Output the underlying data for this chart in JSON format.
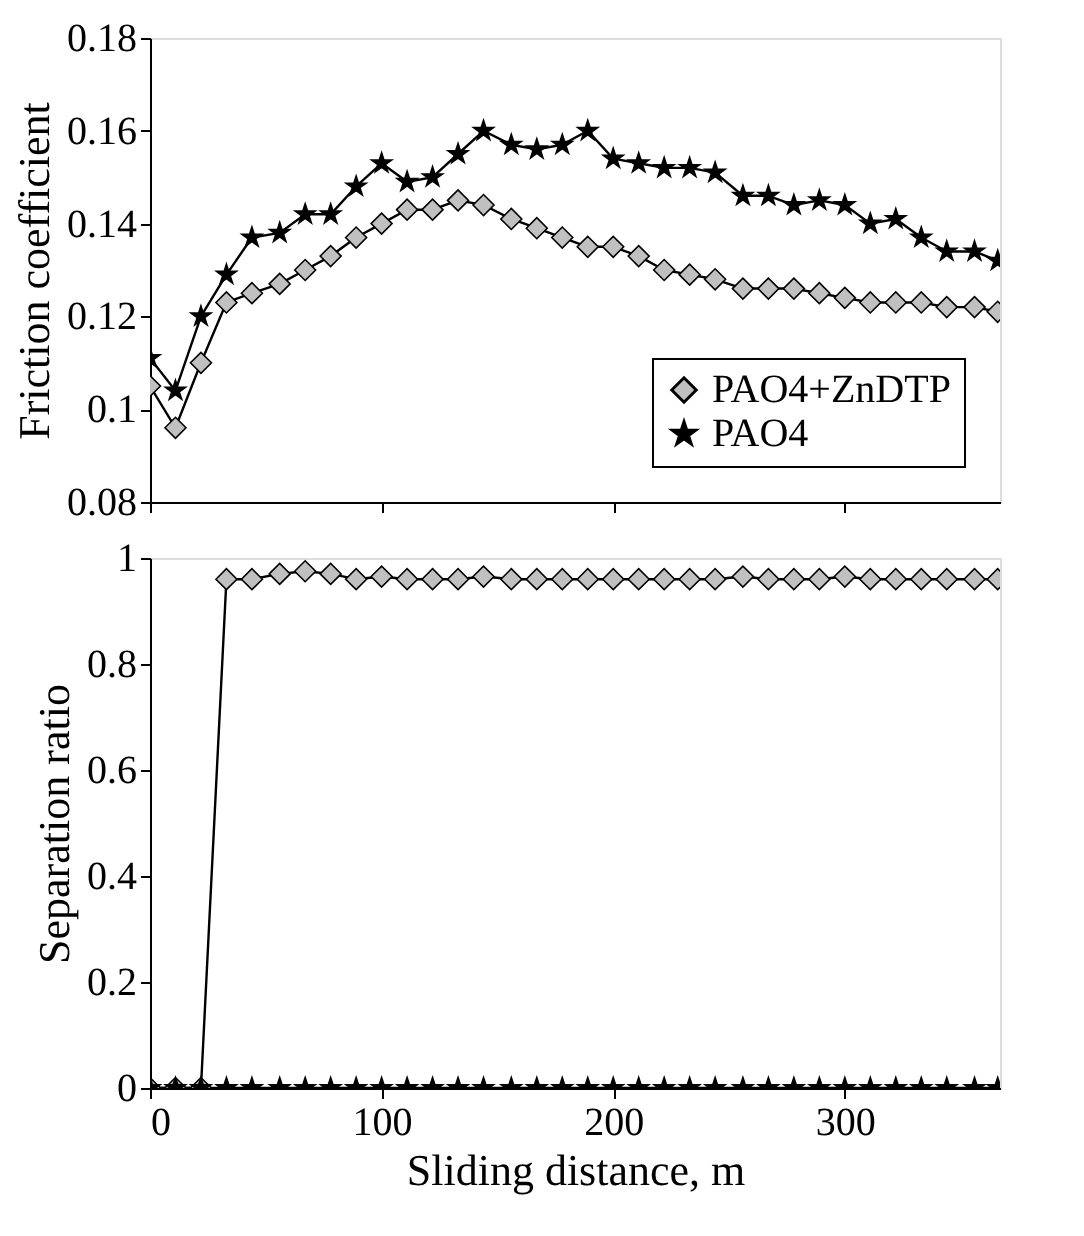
{
  "chart_data": [
    {
      "type": "line",
      "ylabel": "Friction coefficient",
      "xlim": [
        0,
        367
      ],
      "xticks": [
        0,
        100,
        200,
        300
      ],
      "ylim": [
        0.08,
        0.18
      ],
      "yticks": [
        0.08,
        0.1,
        0.12,
        0.14,
        0.16,
        0.18
      ],
      "tick_labels": "y",
      "legend": "bottom right",
      "grid": false,
      "x": [
        0,
        11,
        22,
        33,
        44,
        56,
        67,
        78,
        89,
        100,
        111,
        122,
        133,
        144,
        156,
        167,
        178,
        189,
        200,
        211,
        222,
        233,
        244,
        256,
        267,
        278,
        289,
        300,
        311,
        322,
        333,
        344,
        356,
        366
      ],
      "series": [
        {
          "name": "PAO4+ZnDTP",
          "color": "#c0c0c0",
          "marker": "diamond",
          "values": [
            0.105,
            0.096,
            0.11,
            0.123,
            0.125,
            0.127,
            0.13,
            0.133,
            0.137,
            0.14,
            0.143,
            0.143,
            0.145,
            0.144,
            0.141,
            0.139,
            0.137,
            0.135,
            0.135,
            0.133,
            0.13,
            0.129,
            0.128,
            0.126,
            0.126,
            0.126,
            0.125,
            0.124,
            0.123,
            0.123,
            0.123,
            0.122,
            0.122,
            0.121
          ]
        },
        {
          "name": "PAO4",
          "color": "#000000",
          "marker": "star",
          "values": [
            0.111,
            0.104,
            0.12,
            0.129,
            0.137,
            0.138,
            0.142,
            0.142,
            0.148,
            0.153,
            0.149,
            0.15,
            0.155,
            0.16,
            0.157,
            0.156,
            0.157,
            0.16,
            0.154,
            0.153,
            0.152,
            0.152,
            0.151,
            0.146,
            0.146,
            0.144,
            0.145,
            0.144,
            0.14,
            0.141,
            0.137,
            0.134,
            0.134,
            0.132
          ]
        }
      ]
    },
    {
      "type": "line",
      "xlabel": "Sliding distance, m",
      "ylabel": "Separation ratio",
      "xlim": [
        0,
        367
      ],
      "xticks": [
        0,
        100,
        200,
        300
      ],
      "ylim": [
        0,
        1
      ],
      "yticks": [
        0,
        0.2,
        0.4,
        0.6,
        0.8,
        1
      ],
      "grid": false,
      "x": [
        0,
        11,
        22,
        33,
        44,
        56,
        67,
        78,
        89,
        100,
        111,
        122,
        133,
        144,
        156,
        167,
        178,
        189,
        200,
        211,
        222,
        233,
        244,
        256,
        267,
        278,
        289,
        300,
        311,
        322,
        333,
        344,
        356,
        366
      ],
      "series": [
        {
          "color": "#c0c0c0",
          "marker": "diamond",
          "values": [
            0,
            0,
            0,
            0.96,
            0.96,
            0.97,
            0.975,
            0.97,
            0.96,
            0.965,
            0.96,
            0.96,
            0.96,
            0.965,
            0.96,
            0.96,
            0.96,
            0.96,
            0.96,
            0.96,
            0.96,
            0.96,
            0.96,
            0.965,
            0.96,
            0.96,
            0.96,
            0.965,
            0.96,
            0.96,
            0.96,
            0.96,
            0.96,
            0.96
          ]
        },
        {
          "color": "#000000",
          "marker": "star",
          "values": [
            0,
            0,
            0,
            0,
            0,
            0,
            0,
            0,
            0,
            0,
            0,
            0,
            0,
            0,
            0,
            0,
            0,
            0,
            0,
            0,
            0,
            0,
            0,
            0,
            0,
            0,
            0,
            0,
            0,
            0,
            0,
            0,
            0,
            0
          ]
        }
      ]
    }
  ]
}
